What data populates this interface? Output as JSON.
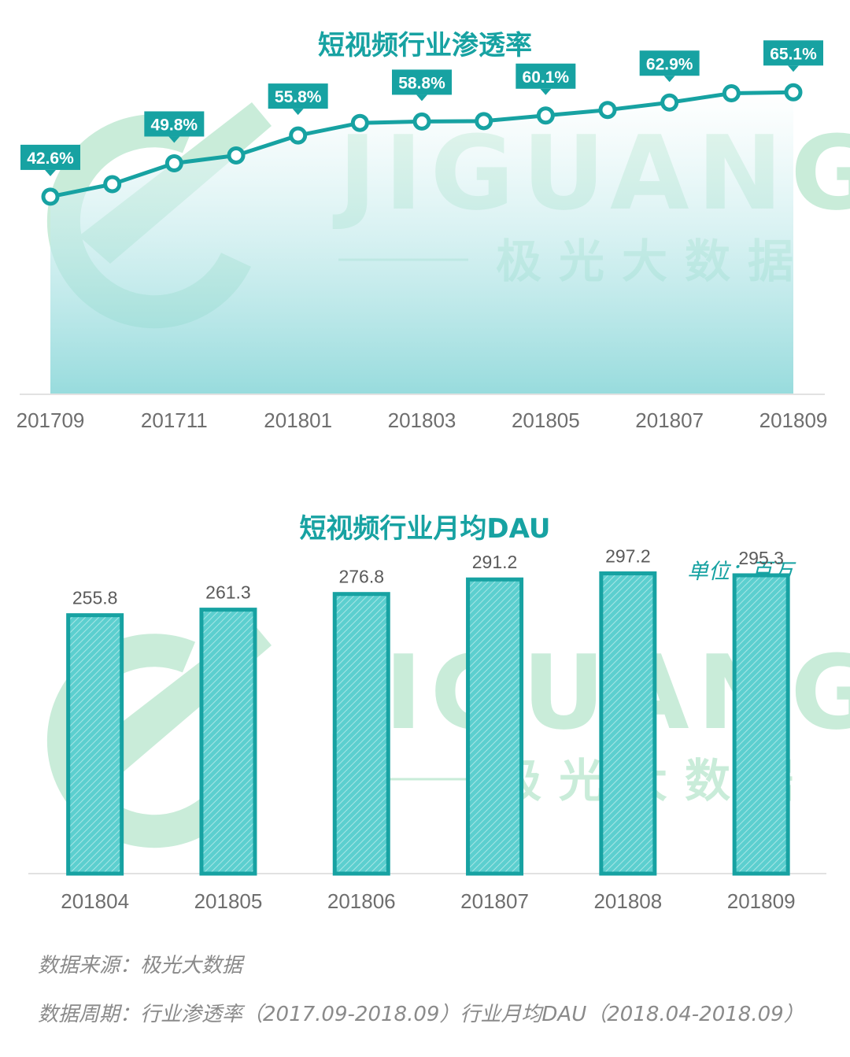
{
  "watermark": {
    "brand": "JIGUANG",
    "brand_cn": "极光大数据"
  },
  "colors": {
    "accent": "#17a2a2",
    "bar_fill": "#40c4c4",
    "area_fill": "#9ddfe0",
    "watermark": "#c9ecd9"
  },
  "chart_data": [
    {
      "type": "line",
      "title": "短视频行业渗透率",
      "x": [
        "201709",
        "201710",
        "201711",
        "201712",
        "201801",
        "201802",
        "201803",
        "201804",
        "201805",
        "201806",
        "201807",
        "201808",
        "201809"
      ],
      "x_tick_labels": [
        "201709",
        "201711",
        "201801",
        "201803",
        "201805",
        "201807",
        "201809"
      ],
      "values": [
        42.6,
        45.3,
        49.8,
        51.5,
        55.8,
        58.5,
        58.8,
        58.9,
        60.1,
        61.3,
        62.9,
        64.9,
        65.1
      ],
      "labeled_points": [
        {
          "x": "201709",
          "label": "42.6%"
        },
        {
          "x": "201711",
          "label": "49.8%"
        },
        {
          "x": "201801",
          "label": "55.8%"
        },
        {
          "x": "201803",
          "label": "58.8%"
        },
        {
          "x": "201805",
          "label": "60.1%"
        },
        {
          "x": "201807",
          "label": "62.9%"
        },
        {
          "x": "201809",
          "label": "65.1%"
        }
      ],
      "ylim": [
        0,
        85
      ],
      "grid": false,
      "area_fill": true
    },
    {
      "type": "bar",
      "title": "短视频行业月均DAU",
      "unit": "单位：百万",
      "categories": [
        "201804",
        "201805",
        "201806",
        "201807",
        "201808",
        "201809"
      ],
      "values": [
        255.8,
        261.3,
        276.8,
        291.2,
        297.2,
        295.3
      ],
      "value_labels": [
        "255.8",
        "261.3",
        "276.8",
        "291.2",
        "297.2",
        "295.3"
      ],
      "ylim": [
        0,
        335
      ],
      "grid": false
    }
  ],
  "footer": {
    "source": "数据来源：极光大数据",
    "period": "数据周期：行业渗透率（2017.09-2018.09）行业月均DAU（2018.04-2018.09）"
  }
}
